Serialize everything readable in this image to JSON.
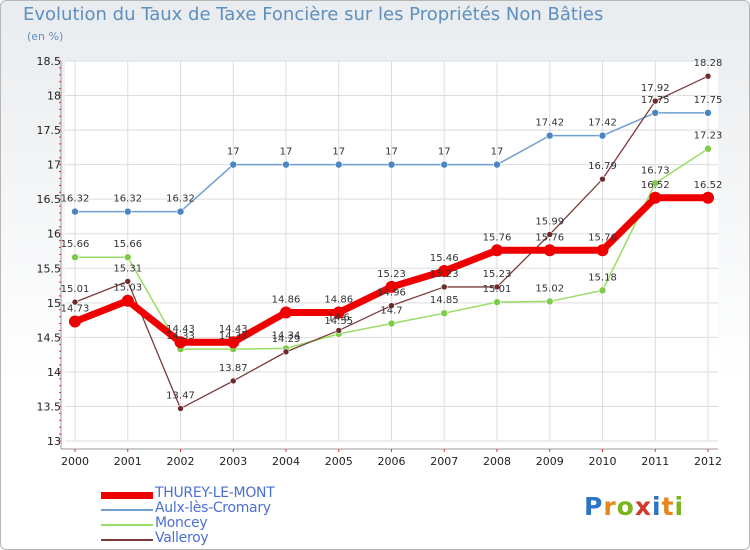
{
  "title": "Evolution du Taux de Taxe Foncière sur les Propriétés Non Bâties",
  "unit": "(en %)",
  "brand": {
    "letters": [
      "P",
      "r",
      "o",
      "x",
      "i",
      "t",
      "i"
    ],
    "colors": [
      "#2e74c6",
      "#e4871c",
      "#7ab51d",
      "#d23b2c",
      "#2e74c6",
      "#e4871c",
      "#7ab51d"
    ]
  },
  "chart_data": {
    "type": "line",
    "title": "Evolution du Taux de Taxe Foncière sur les Propriétés Non Bâties",
    "ylabel": "(en %)",
    "xlabel": "",
    "ylim": [
      13,
      18.5
    ],
    "y_ticks": [
      "13",
      "13.5",
      "14",
      "14.5",
      "15",
      "15.5",
      "16",
      "16.5",
      "17",
      "17.5",
      "18",
      "18.5"
    ],
    "y_tick_values": [
      13,
      13.5,
      14,
      14.5,
      15,
      15.5,
      16,
      16.5,
      17,
      17.5,
      18,
      18.5
    ],
    "categories": [
      "2000",
      "2001",
      "2002",
      "2003",
      "2004",
      "2005",
      "2006",
      "2007",
      "2008",
      "2009",
      "2010",
      "2011",
      "2012"
    ],
    "grid": true,
    "series": [
      {
        "name": "Aulx-lès-Cromary",
        "color": "#6d9fd0",
        "marker": "#4b86c2",
        "width": 1.5,
        "marker_r": 3.5,
        "values": [
          16.32,
          16.32,
          16.32,
          17,
          17,
          17,
          17,
          17,
          17,
          17.42,
          17.42,
          17.75,
          17.75
        ],
        "labels": [
          "16.32",
          "16.32",
          "16.32",
          "17",
          "17",
          "17",
          "17",
          "17",
          "17",
          "17.42",
          "17.42",
          "17.75",
          "17.75"
        ]
      },
      {
        "name": "Moncey",
        "color": "#99dd66",
        "marker": "#7ecb4a",
        "width": 1.5,
        "marker_r": 3.5,
        "values": [
          15.66,
          15.66,
          14.33,
          14.33,
          14.34,
          14.55,
          14.7,
          14.85,
          15.01,
          15.02,
          15.18,
          16.73,
          17.23
        ],
        "labels": [
          "15.66",
          "15.66",
          "14.33",
          "14.33",
          "14.34",
          "14.55",
          "14.7",
          "14.85",
          "15.01",
          "15.02",
          "15.18",
          "16.73",
          "17.23"
        ]
      },
      {
        "name": "Valleroy",
        "color": "#7b3b3b",
        "marker": "#6e2a2a",
        "width": 1.3,
        "marker_r": 3,
        "values": [
          15.01,
          15.31,
          13.47,
          13.87,
          14.29,
          14.6,
          14.96,
          15.23,
          15.23,
          15.99,
          16.79,
          17.92,
          18.28
        ],
        "labels": [
          "15.01",
          "15.31",
          "13.47",
          "13.87",
          "14.29",
          "14.6",
          "14.96",
          "15.23",
          "15.23",
          "15.99",
          "16.79",
          "17.92",
          "18.28"
        ]
      },
      {
        "name": "THUREY-LE-MONT",
        "color": "#ee0000",
        "marker": "#ee0000",
        "width": 7,
        "marker_r": 6,
        "values": [
          14.73,
          15.03,
          14.43,
          14.43,
          14.86,
          14.86,
          15.23,
          15.46,
          15.76,
          15.76,
          15.76,
          16.52,
          16.52
        ],
        "labels": [
          "14.73",
          "15.03",
          "14.43",
          "14.43",
          "14.86",
          "14.86",
          "15.23",
          "15.46",
          "15.76",
          "15.76",
          "15.76",
          "16.52",
          "16.52"
        ]
      }
    ]
  },
  "legend": [
    {
      "name": "THUREY-LE-MONT",
      "color": "#ee0000",
      "width": 7
    },
    {
      "name": "Aulx-lès-Cromary",
      "color": "#6d9fd0",
      "width": 2
    },
    {
      "name": "Moncey",
      "color": "#99dd66",
      "width": 2
    },
    {
      "name": "Valleroy",
      "color": "#7b3b3b",
      "width": 2
    }
  ]
}
